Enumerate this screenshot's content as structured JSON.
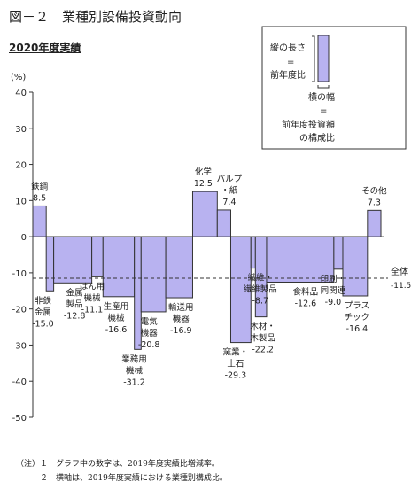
{
  "title": "図－２　業種別設備投資動向",
  "subtitle": "2020年度実績",
  "colors": {
    "bar_fill": "#b8b2f0",
    "bar_stroke": "#333333"
  },
  "legend_box": {
    "vertical_label_1": "縦の長さ",
    "vertical_eq": "=",
    "vertical_label_2": "前年度比",
    "horizontal_label_1": "横の幅",
    "horizontal_eq": "=",
    "horizontal_label_2": "前年度投資額",
    "horizontal_label_3": "の構成比"
  },
  "chart_data": {
    "type": "bar",
    "variable_width": true,
    "ylabel": "(%)",
    "ylim": [
      -50,
      40
    ],
    "yticks": [
      40,
      30,
      20,
      10,
      0,
      -10,
      -20,
      -30,
      -40,
      -50
    ],
    "reference_line": {
      "label": "全体",
      "value": -11.5,
      "value_label": "-11.5"
    },
    "categories": [
      {
        "name": "鉄鋼",
        "value": 8.5,
        "value_label": "8.5",
        "share": 3.6
      },
      {
        "name": "非鉄金属",
        "value": -15.0,
        "value_label": "-15.0",
        "share": 2.0
      },
      {
        "name": "金属製品",
        "value": -12.8,
        "value_label": "-12.8",
        "share": 10.2
      },
      {
        "name": "はん用機械",
        "value": -11.1,
        "value_label": "-11.1",
        "share": 3.0
      },
      {
        "name": "生産用機械",
        "value": -16.6,
        "value_label": "-16.6",
        "share": 8.4
      },
      {
        "name": "業務用機械",
        "value": -31.2,
        "value_label": "-31.2",
        "share": 1.8
      },
      {
        "name": "電気機器",
        "value": -20.8,
        "value_label": "-20.8",
        "share": 6.6
      },
      {
        "name": "輸送用機器",
        "value": -16.9,
        "value_label": "-16.9",
        "share": 7.2
      },
      {
        "name": "化学",
        "value": 12.5,
        "value_label": "12.5",
        "share": 6.6
      },
      {
        "name": "パルプ・紙",
        "value": 7.4,
        "value_label": "7.4",
        "share": 3.6
      },
      {
        "name": "窯業・土石",
        "value": -29.3,
        "value_label": "-29.3",
        "share": 5.4
      },
      {
        "name": "繊維・繊維製品",
        "value": -8.7,
        "value_label": "-8.7",
        "share": 1.2
      },
      {
        "name": "木材・木製品",
        "value": -22.2,
        "value_label": "-22.2",
        "share": 3.0
      },
      {
        "name": "食料品",
        "value": -12.6,
        "value_label": "-12.6",
        "share": 18.0
      },
      {
        "name": "印刷・同関連",
        "value": -9.0,
        "value_label": "-9.0",
        "share": 2.4
      },
      {
        "name": "プラスチック",
        "value": -16.4,
        "value_label": "-16.4",
        "share": 6.6
      },
      {
        "name": "その他",
        "value": 7.3,
        "value_label": "7.3",
        "share": 3.6
      }
    ]
  },
  "notes": [
    "（注）１　グラフ中の数字は、2019年度実績比増減率。",
    "　　　２　横軸は、2019年度実績における業種別構成比。"
  ]
}
